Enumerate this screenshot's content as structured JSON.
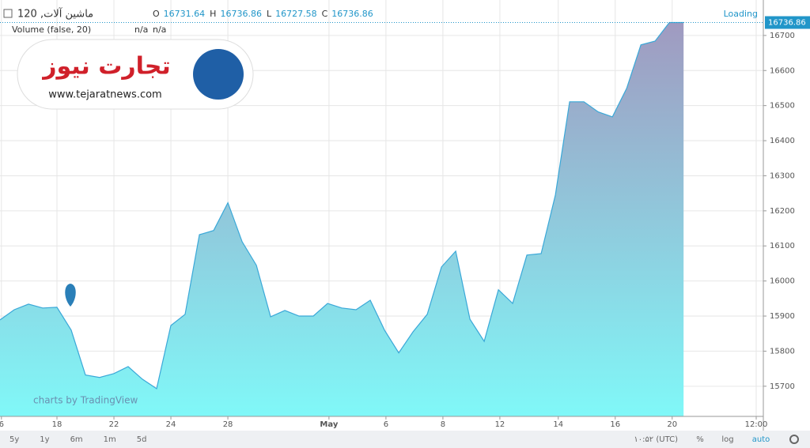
{
  "chart_data": {
    "type": "area",
    "symbol": "ماشین آلات, 120",
    "ohlc": [
      {
        "label": "O",
        "value": 16731.64
      },
      {
        "label": "H",
        "value": 16736.86
      },
      {
        "label": "L",
        "value": 16727.58
      },
      {
        "label": "C",
        "value": 16736.86
      }
    ],
    "status": "Loading",
    "volume": {
      "label": "Volume (false, 20)",
      "values": [
        "n/a",
        "n/a"
      ]
    },
    "logo": {
      "name": "تجارت نیوز",
      "url": "www.tejaratnews.com"
    },
    "watermark": "charts by TradingView",
    "x": [
      0,
      1,
      2,
      3,
      4,
      5,
      6,
      7,
      8,
      9,
      10,
      11,
      12,
      13,
      14,
      15,
      16,
      17,
      18,
      19,
      20,
      21,
      22,
      23,
      24,
      25,
      26,
      27,
      28,
      29,
      30,
      31,
      32,
      33,
      34,
      35,
      36,
      37,
      38,
      39,
      40,
      41,
      42,
      43,
      44,
      45,
      46,
      47,
      48
    ],
    "series": [
      {
        "name": "ماشین آلات",
        "color": "#3aa8d8",
        "values": [
          15889,
          15918,
          15934,
          15923,
          15925,
          15860,
          15732,
          15725,
          15736,
          15756,
          15720,
          15693,
          15873,
          15905,
          16132,
          16144,
          16223,
          16112,
          16045,
          15898,
          15916,
          15900,
          15900,
          15936,
          15923,
          15918,
          15945,
          15860,
          15795,
          15855,
          15905,
          16040,
          16085,
          15891,
          15828,
          15975,
          15936,
          16074,
          16078,
          16245,
          16511,
          16511,
          16482,
          16468,
          16549,
          16673,
          16684,
          16736.86,
          16736.86
        ]
      }
    ],
    "xlim": [
      0,
      53.6
    ],
    "xticks": [
      {
        "value": 0.1,
        "label": "6"
      },
      {
        "value": 4,
        "label": "18"
      },
      {
        "value": 8,
        "label": "22"
      },
      {
        "value": 12,
        "label": "24"
      },
      {
        "value": 16,
        "label": "28"
      },
      {
        "value": 23.1,
        "label": "May"
      },
      {
        "value": 27.1,
        "label": "6"
      },
      {
        "value": 31.1,
        "label": "8"
      },
      {
        "value": 35.1,
        "label": "12"
      },
      {
        "value": 39.2,
        "label": "14"
      },
      {
        "value": 43.2,
        "label": "16"
      },
      {
        "value": 47.2,
        "label": "20"
      },
      {
        "value": 53.1,
        "label": "12:00"
      }
    ],
    "ylim": [
      15614,
      16756
    ],
    "yticks": [
      15700,
      15800,
      15900,
      16000,
      16100,
      16200,
      16300,
      16400,
      16500,
      16600,
      16700
    ],
    "grid": true,
    "ranges": [
      "5y",
      "1y",
      "6m",
      "1m",
      "5d"
    ],
    "time": "۱۰:۵۲ (UTC)",
    "options": [
      "%",
      "log",
      "auto"
    ]
  }
}
